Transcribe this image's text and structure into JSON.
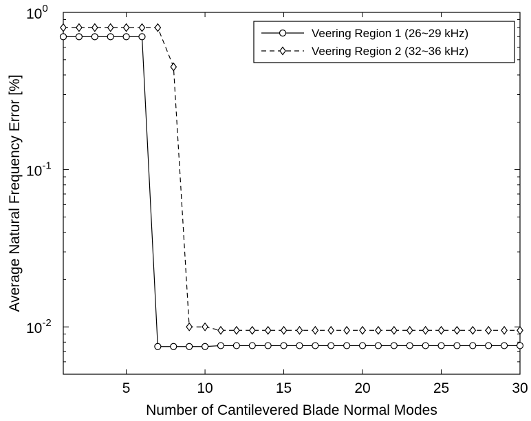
{
  "chart_data": {
    "type": "line",
    "xlabel": "Number of Cantilevered Blade Normal Modes",
    "ylabel": "Average Natural Frequency Error [%]",
    "xlim": [
      1,
      30
    ],
    "ylim": [
      0.005,
      1
    ],
    "yscale": "log",
    "grid": false,
    "legend_position": "top-right",
    "x_ticks": [
      5,
      10,
      15,
      20,
      25,
      30
    ],
    "y_ticks": [
      {
        "value": 0.01,
        "base": "10",
        "exp": "-2"
      },
      {
        "value": 0.1,
        "base": "10",
        "exp": "-1"
      },
      {
        "value": 1,
        "base": "10",
        "exp": "0"
      }
    ],
    "x": [
      1,
      2,
      3,
      4,
      5,
      6,
      7,
      8,
      9,
      10,
      11,
      12,
      13,
      14,
      15,
      16,
      17,
      18,
      19,
      20,
      21,
      22,
      23,
      24,
      25,
      26,
      27,
      28,
      29,
      30
    ],
    "series": [
      {
        "name": "Veering Region 1 (26~29 kHz)",
        "marker": "circle",
        "line_style": "solid",
        "color": "#000000",
        "values": [
          0.7,
          0.7,
          0.7,
          0.7,
          0.7,
          0.7,
          0.0075,
          0.0075,
          0.0075,
          0.0075,
          0.0076,
          0.0076,
          0.0076,
          0.0076,
          0.0076,
          0.0076,
          0.0076,
          0.0076,
          0.0076,
          0.0076,
          0.0076,
          0.0076,
          0.0076,
          0.0076,
          0.0076,
          0.0076,
          0.0076,
          0.0076,
          0.0076,
          0.0076
        ]
      },
      {
        "name": "Veering Region 2 (32~36 kHz)",
        "marker": "diamond",
        "line_style": "dashed",
        "color": "#000000",
        "values": [
          0.8,
          0.8,
          0.8,
          0.8,
          0.8,
          0.8,
          0.8,
          0.45,
          0.01,
          0.01,
          0.0095,
          0.0095,
          0.0095,
          0.0095,
          0.0095,
          0.0095,
          0.0095,
          0.0095,
          0.0095,
          0.0095,
          0.0095,
          0.0095,
          0.0095,
          0.0095,
          0.0095,
          0.0095,
          0.0095,
          0.0095,
          0.0095,
          0.0095
        ]
      }
    ]
  }
}
